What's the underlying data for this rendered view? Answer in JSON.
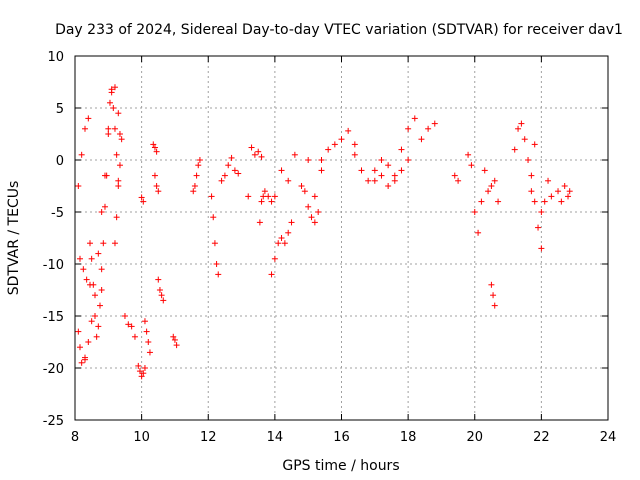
{
  "chart_data": {
    "type": "scatter",
    "title": "Day 233 of 2024, Sidereal Day-to-day VTEC variation (SDTVAR) for receiver dav1",
    "xlabel": "GPS time / hours",
    "ylabel": "SDTVAR / TECUs",
    "xlim": [
      8,
      24
    ],
    "ylim": [
      -25,
      10
    ],
    "xticks": [
      8,
      10,
      12,
      14,
      16,
      18,
      20,
      22,
      24
    ],
    "yticks": [
      -25,
      -20,
      -15,
      -10,
      -5,
      0,
      5,
      10
    ],
    "grid": true,
    "marker": "+",
    "colors": {
      "series": "#ff0000"
    },
    "series": [
      {
        "name": "dav1 SDTVAR",
        "segments": [
          {
            "x": [
              8.1,
              8.2,
              8.3,
              8.4
            ],
            "y": [
              -2.5,
              0.5,
              3.0,
              4.0
            ]
          },
          {
            "x": [
              8.1,
              8.15,
              8.2,
              8.3
            ],
            "y": [
              -16.5,
              -18.0,
              -19.5,
              -19.2
            ]
          },
          {
            "x": [
              8.15,
              8.25,
              8.35,
              8.45
            ],
            "y": [
              -9.5,
              -10.5,
              -11.5,
              -12.0
            ]
          },
          {
            "x": [
              8.3,
              8.4,
              8.5,
              8.6,
              8.7,
              8.8,
              8.9,
              9.0,
              9.1,
              9.2,
              9.3,
              9.35
            ],
            "y": [
              -19.0,
              -17.5,
              -15.5,
              -13.0,
              -9.0,
              -5.0,
              -1.5,
              3.0,
              6.5,
              7.0,
              4.5,
              2.5
            ]
          },
          {
            "x": [
              8.45,
              8.5,
              8.55,
              8.6,
              8.65,
              8.7,
              8.75,
              8.8
            ],
            "y": [
              -8.0,
              -9.5,
              -12.0,
              -15.0,
              -17.0,
              -16.0,
              -14.0,
              -12.5
            ]
          },
          {
            "x": [
              8.8,
              8.85,
              8.9,
              8.95,
              9.0,
              9.05,
              9.1,
              9.15,
              9.2,
              9.25,
              9.3
            ],
            "y": [
              -10.5,
              -8.0,
              -4.5,
              -1.5,
              2.5,
              5.5,
              6.8,
              5.0,
              3.0,
              0.5,
              -2.0
            ]
          },
          {
            "x": [
              9.2,
              9.25,
              9.3,
              9.35,
              9.4
            ],
            "y": [
              -8.0,
              -5.5,
              -2.5,
              -0.5,
              2.0
            ]
          },
          {
            "x": [
              9.5,
              9.6,
              9.7,
              9.8
            ],
            "y": [
              -15.0,
              -15.8,
              -16.0,
              -17.0
            ]
          },
          {
            "x": [
              9.9,
              9.95,
              10.0,
              10.05,
              10.1
            ],
            "y": [
              -19.8,
              -20.3,
              -20.8,
              -20.5,
              -20.0
            ]
          },
          {
            "x": [
              10.0,
              10.05
            ],
            "y": [
              -3.6,
              -4.0
            ]
          },
          {
            "x": [
              10.1,
              10.15,
              10.2,
              10.25
            ],
            "y": [
              -15.5,
              -16.5,
              -17.5,
              -18.5
            ]
          },
          {
            "x": [
              10.35,
              10.4,
              10.45
            ],
            "y": [
              1.5,
              1.2,
              0.8
            ]
          },
          {
            "x": [
              10.4,
              10.45,
              10.5
            ],
            "y": [
              -1.5,
              -2.5,
              -3.0
            ]
          },
          {
            "x": [
              10.5,
              10.55,
              10.6,
              10.65
            ],
            "y": [
              -11.5,
              -12.5,
              -13.0,
              -13.5
            ]
          },
          {
            "x": [
              10.95,
              11.0,
              11.05
            ],
            "y": [
              -17.0,
              -17.3,
              -17.8
            ]
          },
          {
            "x": [
              11.55,
              11.6,
              11.65,
              11.7,
              11.75
            ],
            "y": [
              -3.0,
              -2.5,
              -1.5,
              -0.5,
              0.0
            ]
          },
          {
            "x": [
              12.1,
              12.15,
              12.2,
              12.25,
              12.3
            ],
            "y": [
              -3.5,
              -5.5,
              -8.0,
              -10.0,
              -11.0
            ]
          },
          {
            "x": [
              12.4,
              12.5,
              12.6,
              12.7,
              12.8,
              12.9
            ],
            "y": [
              -2.0,
              -1.5,
              -0.5,
              0.2,
              -1.0,
              -1.3
            ]
          },
          {
            "x": [
              13.2,
              13.3,
              13.4,
              13.5,
              13.6
            ],
            "y": [
              -3.5,
              1.2,
              0.5,
              0.8,
              0.3
            ]
          },
          {
            "x": [
              13.55,
              13.6,
              13.65,
              13.7,
              13.8,
              13.9,
              14.0
            ],
            "y": [
              -6.0,
              -4.0,
              -3.5,
              -3.0,
              -3.5,
              -4.0,
              -3.5
            ]
          },
          {
            "x": [
              13.9,
              14.0,
              14.1,
              14.2,
              14.3,
              14.4,
              14.5
            ],
            "y": [
              -11.0,
              -9.5,
              -8.0,
              -7.5,
              -8.0,
              -7.0,
              -6.0
            ]
          },
          {
            "x": [
              14.2,
              14.4,
              14.6,
              14.8,
              15.0,
              15.2,
              15.4
            ],
            "y": [
              -1.0,
              -2.0,
              0.5,
              -2.5,
              0.0,
              -3.5,
              -1.0
            ]
          },
          {
            "x": [
              14.9,
              15.0,
              15.1,
              15.2,
              15.3
            ],
            "y": [
              -3.0,
              -4.5,
              -5.5,
              -6.0,
              -5.0
            ]
          },
          {
            "x": [
              15.4,
              15.6,
              15.8,
              16.0,
              16.2,
              16.4
            ],
            "y": [
              0.0,
              1.0,
              1.5,
              2.0,
              2.8,
              1.5
            ]
          },
          {
            "x": [
              16.4,
              16.6,
              16.8,
              17.0,
              17.2,
              17.4,
              17.6
            ],
            "y": [
              0.5,
              -1.0,
              -2.0,
              -1.0,
              0.0,
              -0.5,
              -1.5
            ]
          },
          {
            "x": [
              17.0,
              17.2,
              17.4,
              17.6,
              17.8,
              18.0
            ],
            "y": [
              -2.0,
              -1.5,
              -2.5,
              -2.0,
              -1.0,
              0.0
            ]
          },
          {
            "x": [
              17.8,
              18.0,
              18.2,
              18.4,
              18.6,
              18.8
            ],
            "y": [
              1.0,
              3.0,
              4.0,
              2.0,
              3.0,
              3.5
            ]
          },
          {
            "x": [
              19.4,
              19.5
            ],
            "y": [
              -1.5,
              -2.0
            ]
          },
          {
            "x": [
              19.8,
              19.9
            ],
            "y": [
              0.5,
              -0.5
            ]
          },
          {
            "x": [
              20.0,
              20.1,
              20.2,
              20.3,
              20.4,
              20.5,
              20.6,
              20.7
            ],
            "y": [
              -5.0,
              -7.0,
              -4.0,
              -1.0,
              -3.0,
              -2.5,
              -2.0,
              -4.0
            ]
          },
          {
            "x": [
              20.5,
              20.55,
              20.6
            ],
            "y": [
              -12.0,
              -13.0,
              -14.0
            ]
          },
          {
            "x": [
              21.2,
              21.3,
              21.4,
              21.5,
              21.6,
              21.7,
              21.8
            ],
            "y": [
              1.0,
              3.0,
              3.5,
              2.0,
              0.0,
              -1.5,
              1.5
            ]
          },
          {
            "x": [
              21.7,
              21.8,
              21.9,
              22.0,
              22.1,
              22.2,
              22.3
            ],
            "y": [
              -3.0,
              -4.0,
              -6.5,
              -5.0,
              -4.0,
              -2.0,
              -3.5
            ]
          },
          {
            "x": [
              22.0
            ],
            "y": [
              -8.5
            ]
          },
          {
            "x": [
              22.5,
              22.6,
              22.7,
              22.8,
              22.85
            ],
            "y": [
              -3.0,
              -4.0,
              -2.5,
              -3.5,
              -3.0
            ]
          }
        ]
      }
    ]
  }
}
